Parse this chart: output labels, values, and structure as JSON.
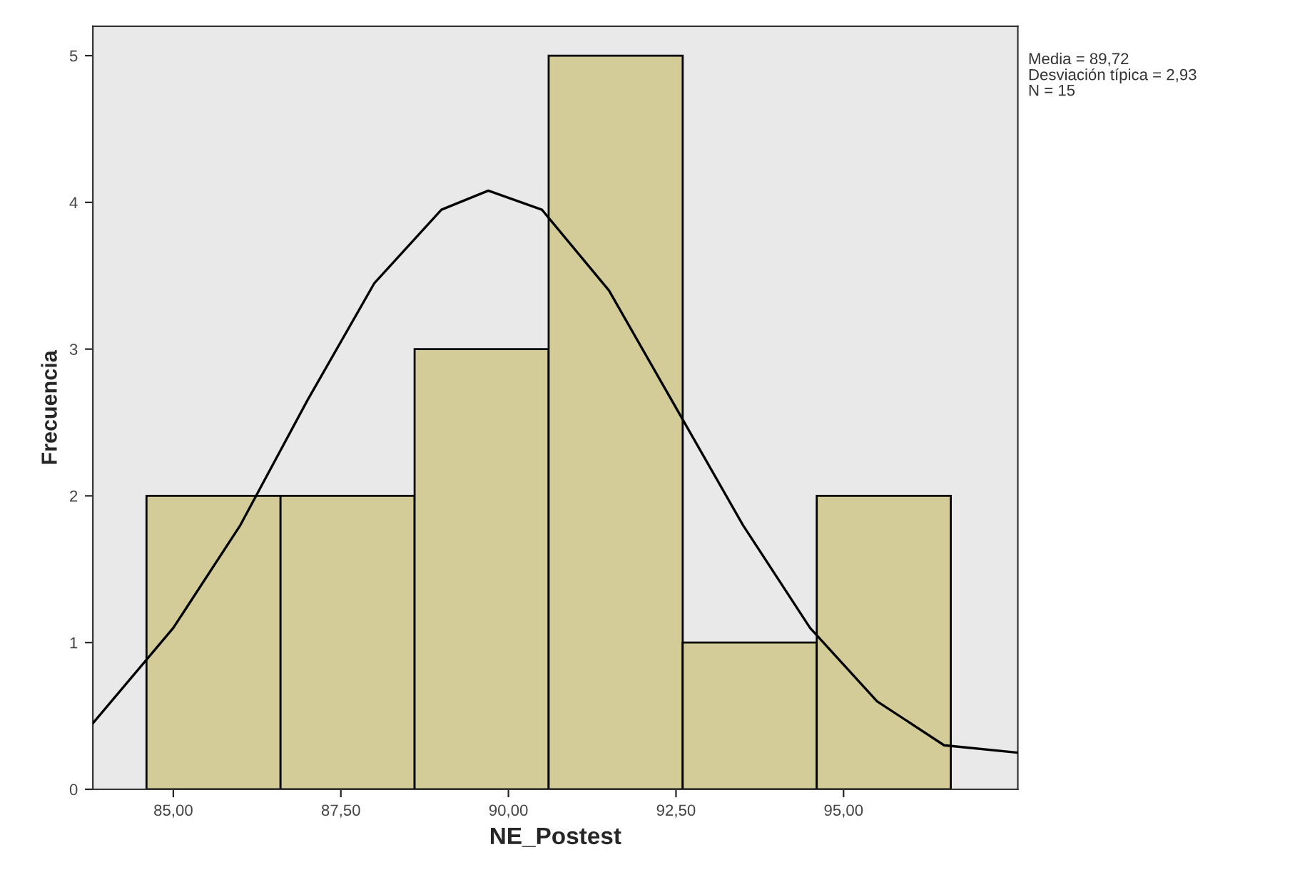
{
  "chart_data": {
    "type": "histogram",
    "xlabel": "NE_Postest",
    "ylabel": "Frecuencia",
    "bins": [
      84.6,
      86.6,
      88.6,
      90.6,
      92.6,
      94.6,
      96.6
    ],
    "values": [
      2,
      2,
      3,
      5,
      1,
      2
    ],
    "color": "#d3cc99",
    "series": [
      {
        "type": "line",
        "color": "#000000",
        "x": [
          83.8,
          85,
          86,
          87,
          88,
          89,
          89.7,
          90.5,
          91.5,
          92.5,
          93.5,
          94.5,
          95.5,
          96.5,
          97.6
        ],
        "values": [
          0.45,
          1.1,
          1.8,
          2.65,
          3.45,
          3.95,
          4.08,
          3.95,
          3.4,
          2.6,
          1.8,
          1.1,
          0.6,
          0.3,
          0.25
        ]
      }
    ],
    "xlim": [
      83.8,
      97.6
    ],
    "ylim": [
      0,
      5.2
    ],
    "xticks": [
      {
        "value": 85,
        "label": "85,00"
      },
      {
        "value": 87.5,
        "label": "87,50"
      },
      {
        "value": 90,
        "label": "90,00"
      },
      {
        "value": 92.5,
        "label": "92,50"
      },
      {
        "value": 95,
        "label": "95,00"
      }
    ],
    "yticks": [
      0,
      1,
      2,
      3,
      4,
      5
    ],
    "annotations": [
      "Media = 89,72",
      "Desviación típica = 2,93",
      "N = 15"
    ]
  }
}
